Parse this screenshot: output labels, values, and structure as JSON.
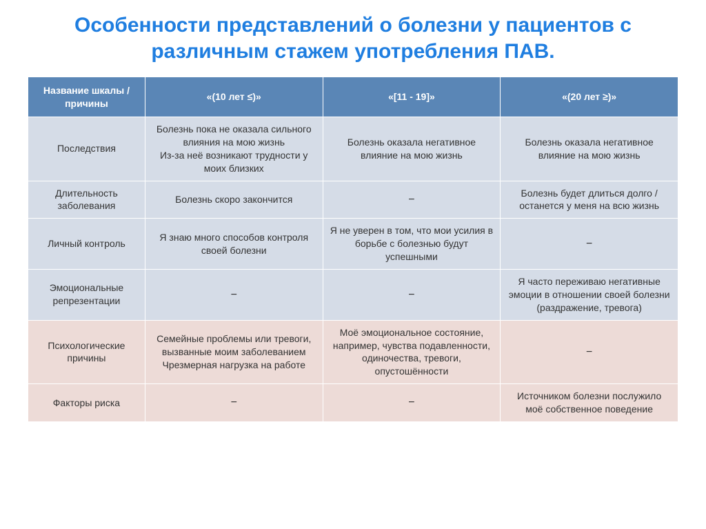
{
  "title": "Особенности представлений о болезни у пациентов с различным стажем употребления ПАВ.",
  "table": {
    "header_bg": "#5a86b6",
    "header_color": "#ffffff",
    "blue_bg": "#d5dce7",
    "pink_bg": "#eddbd7",
    "border_color": "#ffffff",
    "title_color": "#1f7ee0",
    "columns": [
      "Название шкалы / причины",
      "«(10 лет ≤)»",
      "«[11 - 19]»",
      "«(20 лет ≥)»"
    ],
    "rows": [
      {
        "tone": "blue",
        "cells": [
          "Последствия",
          "Болезнь пока не оказала сильного влияния на мою жизнь\nИз-за неё возникают трудности у моих близких",
          "Болезнь оказала негативное влияние на мою жизнь",
          "Болезнь оказала негативное влияние на мою жизнь"
        ]
      },
      {
        "tone": "blue",
        "cells": [
          "Длительность заболевания",
          "Болезнь скоро закончится",
          "−",
          "Болезнь будет длиться долго / останется у меня на всю жизнь"
        ]
      },
      {
        "tone": "blue",
        "cells": [
          "Личный контроль",
          "Я знаю много способов контроля своей болезни",
          "Я не уверен в том, что мои усилия в борьбе с болезнью будут успешными",
          "−"
        ]
      },
      {
        "tone": "blue",
        "cells": [
          "Эмоциональные репрезентации",
          "−",
          "−",
          "Я часто переживаю негативные эмоции в отношении своей болезни (раздражение, тревога)"
        ]
      },
      {
        "tone": "pink",
        "cells": [
          "Психологические причины",
          "Семейные проблемы или тревоги, вызванные моим заболеванием\nЧрезмерная нагрузка на работе",
          "Моё эмоциональное состояние, например, чувства подавленности, одиночества, тревоги, опустошённости",
          "−"
        ]
      },
      {
        "tone": "pink",
        "cells": [
          "Факторы риска",
          "−",
          "−",
          "Источником болезни послужило моё собственное поведение"
        ]
      }
    ]
  }
}
